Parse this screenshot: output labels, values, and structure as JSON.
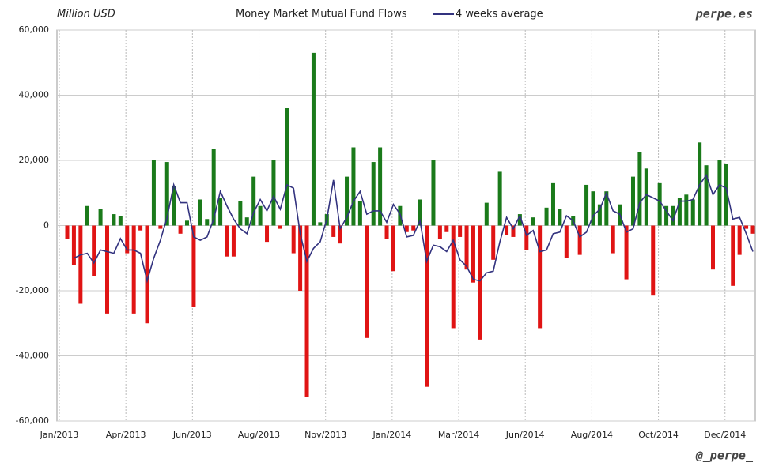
{
  "chart_data": {
    "type": "bar",
    "title": "Money Market Mutual Fund Flows",
    "y_label": "Million USD",
    "source": "perpe.es",
    "credit": "@_perpe_",
    "categories": [
      "Jan/2013",
      null,
      null,
      null,
      null,
      null,
      null,
      null,
      null,
      null,
      "Apr/2013",
      null,
      null,
      null,
      null,
      null,
      null,
      null,
      null,
      null,
      "Jun/2013",
      null,
      null,
      null,
      null,
      null,
      null,
      null,
      null,
      null,
      "Aug/2013",
      null,
      null,
      null,
      null,
      null,
      null,
      null,
      null,
      null,
      "Nov/2013",
      null,
      null,
      null,
      null,
      null,
      null,
      null,
      null,
      null,
      "Jan/2014",
      null,
      null,
      null,
      null,
      null,
      null,
      null,
      null,
      null,
      "Mar/2014",
      null,
      null,
      null,
      null,
      null,
      null,
      null,
      null,
      null,
      "Jun/2014",
      null,
      null,
      null,
      null,
      null,
      null,
      null,
      null,
      null,
      "Aug/2014",
      null,
      null,
      null,
      null,
      null,
      null,
      null,
      null,
      null,
      "Oct/2014",
      null,
      null,
      null,
      null,
      null,
      null,
      null,
      null,
      null,
      "Dec/2014",
      null,
      null,
      null
    ],
    "values": [
      -4000,
      -12000,
      -24000,
      6000,
      -15500,
      5000,
      -27000,
      3500,
      3000,
      -8500,
      -27000,
      -1500,
      -30000,
      20000,
      -1000,
      19500,
      12000,
      -2500,
      1500,
      -25000,
      8000,
      2000,
      23500,
      8500,
      -9500,
      -9500,
      7500,
      2500,
      15000,
      6000,
      -5000,
      20000,
      -1000,
      36000,
      -8500,
      -20000,
      -52500,
      53000,
      1000,
      3500,
      -3500,
      -5500,
      15000,
      24000,
      7500,
      -34500,
      19500,
      24000,
      -4000,
      -14000,
      6000,
      -2000,
      -1500,
      8000,
      -49500,
      20000,
      -4000,
      -2000,
      -31500,
      -3500,
      -13500,
      -17500,
      -35000,
      7000,
      -10500,
      16500,
      -3000,
      -3500,
      3500,
      -7500,
      2500,
      -31500,
      5500,
      13000,
      5000,
      -10000,
      3000,
      -9000,
      12500,
      10500,
      6500,
      10500,
      -8500,
      6500,
      -16500,
      15000,
      22500,
      17500,
      -21500,
      13000,
      6000,
      6000,
      8500,
      9500,
      8000,
      25500,
      18500,
      -13500,
      20000,
      19000,
      -18500,
      -9000,
      -1000,
      -2500
    ],
    "positive_color": "#1a7a1a",
    "negative_color": "#e01414",
    "series": [
      {
        "name": "4 weeks average",
        "type": "line",
        "color": "#33337f",
        "values": [
          null,
          -10000,
          -9000,
          -8500,
          -11500,
          -7500,
          -8000,
          -8500,
          -4000,
          -7500,
          -7500,
          -8500,
          -17000,
          -10000,
          -4500,
          2500,
          12500,
          7000,
          7000,
          -3500,
          -4500,
          -3500,
          2000,
          10500,
          6000,
          2000,
          -1000,
          -2500,
          4000,
          8000,
          4500,
          9000,
          5000,
          12500,
          11500,
          -2500,
          -11000,
          -7000,
          -5000,
          2000,
          14000,
          -1000,
          2500,
          7500,
          10500,
          3500,
          4500,
          4500,
          1000,
          6500,
          3500,
          -3500,
          -3000,
          1500,
          -11000,
          -6000,
          -6500,
          -8000,
          -4500,
          -10500,
          -12500,
          -16500,
          -17000,
          -14500,
          -14000,
          -5000,
          2500,
          -1000,
          3000,
          -3000,
          -1500,
          -8000,
          -7500,
          -2500,
          -2000,
          3000,
          1500,
          -3500,
          -2000,
          3000,
          5000,
          10000,
          4500,
          3500,
          -2000,
          -1000,
          7000,
          9500,
          8500,
          7500,
          4500,
          1500,
          7500,
          7500,
          8000,
          12500,
          15500,
          9500,
          12500,
          11500,
          2000,
          2500,
          -2500,
          -8000
        ]
      }
    ],
    "ylim": [
      -60000,
      60000
    ],
    "yticks": [
      {
        "value": -60000,
        "label": "-60,000"
      },
      {
        "value": -40000,
        "label": "-40,000"
      },
      {
        "value": -20000,
        "label": "-20,000"
      },
      0,
      {
        "value": 20000,
        "label": "20,000"
      },
      {
        "value": 40000,
        "label": "40,000"
      },
      {
        "value": 60000,
        "label": "60,000"
      }
    ],
    "grid": true
  }
}
